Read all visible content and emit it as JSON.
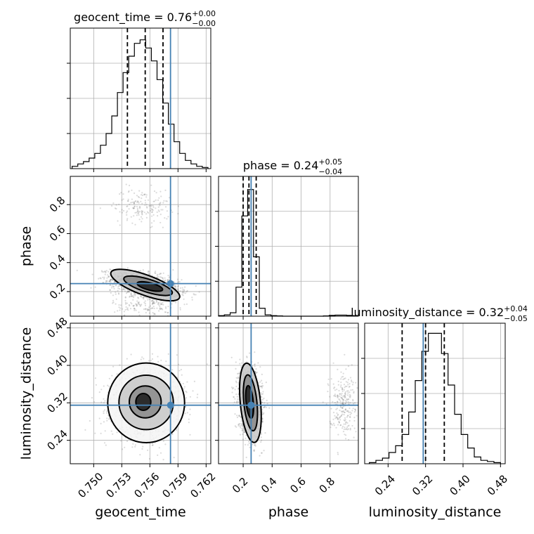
{
  "chart_data": {
    "type": "corner",
    "parameters": [
      {
        "name": "geocent_time",
        "label": "geocent_time",
        "range": [
          0.7475,
          0.7625
        ],
        "ticks": [
          0.75,
          0.753,
          0.756,
          0.759,
          0.762
        ],
        "tick_labels": [
          "0.750",
          "0.753",
          "0.756",
          "0.759",
          "0.762"
        ],
        "truth": 0.7582,
        "quantiles": [
          0.7536,
          0.7555,
          0.7574
        ],
        "title_main": "geocent_time = 0.76",
        "title_sup": "+0.00",
        "title_sub": "−0.00",
        "hist_edges_range": [
          0.7477,
          0.7622
        ],
        "hist_counts": [
          2,
          4,
          6,
          9,
          13,
          20,
          30,
          45,
          65,
          82,
          96,
          107,
          110,
          103,
          92,
          76,
          56,
          38,
          23,
          13,
          7,
          4,
          2,
          1
        ]
      },
      {
        "name": "phase",
        "label": "phase",
        "range": [
          0.03,
          0.995
        ],
        "ticks": [
          0.2,
          0.4,
          0.6,
          0.8
        ],
        "tick_labels": [
          "0.2",
          "0.4",
          "0.6",
          "0.8"
        ],
        "truth": 0.255,
        "quantiles": [
          0.2,
          0.24,
          0.29
        ],
        "title_main": "phase = 0.24",
        "title_sup": "+0.05",
        "title_sub": "−0.04",
        "hist_edges_range": [
          0.03,
          0.995
        ],
        "hist_counts": [
          2,
          5,
          13,
          110,
          380,
          480,
          225,
          30,
          5,
          2,
          1,
          0,
          0,
          0,
          0,
          0,
          0,
          0,
          1,
          3,
          4,
          4,
          3,
          2
        ]
      },
      {
        "name": "luminosity_distance",
        "label": "luminosity_distance",
        "range": [
          0.19,
          0.49
        ],
        "ticks": [
          0.24,
          0.32,
          0.4,
          0.48
        ],
        "tick_labels": [
          "0.24",
          "0.32",
          "0.40",
          "0.48"
        ],
        "truth": 0.315,
        "quantiles": [
          0.27,
          0.32,
          0.36
        ],
        "title_main": "luminosity_distance = 0.32",
        "title_sup": "+0.04",
        "title_sub": "−0.05",
        "hist_edges_range": [
          0.2,
          0.48
        ],
        "hist_counts": [
          1,
          3,
          5,
          10,
          16,
          26,
          46,
          74,
          100,
          116,
          116,
          98,
          70,
          44,
          26,
          14,
          6,
          3,
          2,
          1
        ]
      }
    ],
    "truth_color": "#4682b4",
    "sample_color": "#5a5a5a",
    "grid": true,
    "ylim_1d": {
      "geocent_time": [
        0,
        120
      ],
      "phase": [
        0,
        530
      ],
      "luminosity_distance": [
        0,
        125
      ]
    },
    "pairs": [
      {
        "x": "geocent_time",
        "y": "phase",
        "clusters": [
          {
            "cx": 0.7555,
            "cy": 0.245,
            "sx": 0.0018,
            "sy": 0.045,
            "rho": -0.45,
            "n": 1600
          },
          {
            "cx": 0.7552,
            "cy": 0.79,
            "sx": 0.0015,
            "sy": 0.06,
            "rho": 0.0,
            "n": 170
          },
          {
            "cx": 0.7555,
            "cy": 0.1,
            "sx": 0.0017,
            "sy": 0.04,
            "rho": 0.0,
            "n": 150
          }
        ],
        "contours": [
          {
            "cx": 0.7555,
            "cy": 0.245,
            "rx": 0.0039,
            "ry": 0.07,
            "rot": -0.35
          },
          {
            "cx": 0.7558,
            "cy": 0.24,
            "rx": 0.0027,
            "ry": 0.045,
            "rot": -0.3
          },
          {
            "cx": 0.756,
            "cy": 0.235,
            "rx": 0.0014,
            "ry": 0.025,
            "rot": -0.25
          }
        ]
      },
      {
        "x": "geocent_time",
        "y": "luminosity_distance",
        "clusters": [
          {
            "cx": 0.7556,
            "cy": 0.32,
            "sx": 0.0018,
            "sy": 0.035,
            "rho": 0.05,
            "n": 1800
          }
        ],
        "contours": [
          {
            "cx": 0.7556,
            "cy": 0.32,
            "rx": 0.0041,
            "ry": 0.085,
            "rot": 0.0
          },
          {
            "cx": 0.7556,
            "cy": 0.321,
            "rx": 0.0029,
            "ry": 0.058,
            "rot": 0.0
          },
          {
            "cx": 0.7555,
            "cy": 0.322,
            "rx": 0.0017,
            "ry": 0.034,
            "rot": 0.0
          },
          {
            "cx": 0.7553,
            "cy": 0.322,
            "rx": 0.0008,
            "ry": 0.018,
            "rot": 0.0
          }
        ]
      },
      {
        "x": "phase",
        "y": "luminosity_distance",
        "clusters": [
          {
            "cx": 0.25,
            "cy": 0.32,
            "sx": 0.04,
            "sy": 0.035,
            "rho": -0.2,
            "n": 1500
          },
          {
            "cx": 0.89,
            "cy": 0.32,
            "sx": 0.05,
            "sy": 0.035,
            "rho": 0.0,
            "n": 260
          }
        ],
        "contours": [
          {
            "cx": 0.25,
            "cy": 0.32,
            "rx": 0.07,
            "ry": 0.085,
            "rot": 0.1
          },
          {
            "cx": 0.25,
            "cy": 0.32,
            "rx": 0.045,
            "ry": 0.06,
            "rot": 0.1
          },
          {
            "cx": 0.245,
            "cy": 0.322,
            "rx": 0.025,
            "ry": 0.035,
            "rot": 0.1
          }
        ]
      }
    ]
  }
}
